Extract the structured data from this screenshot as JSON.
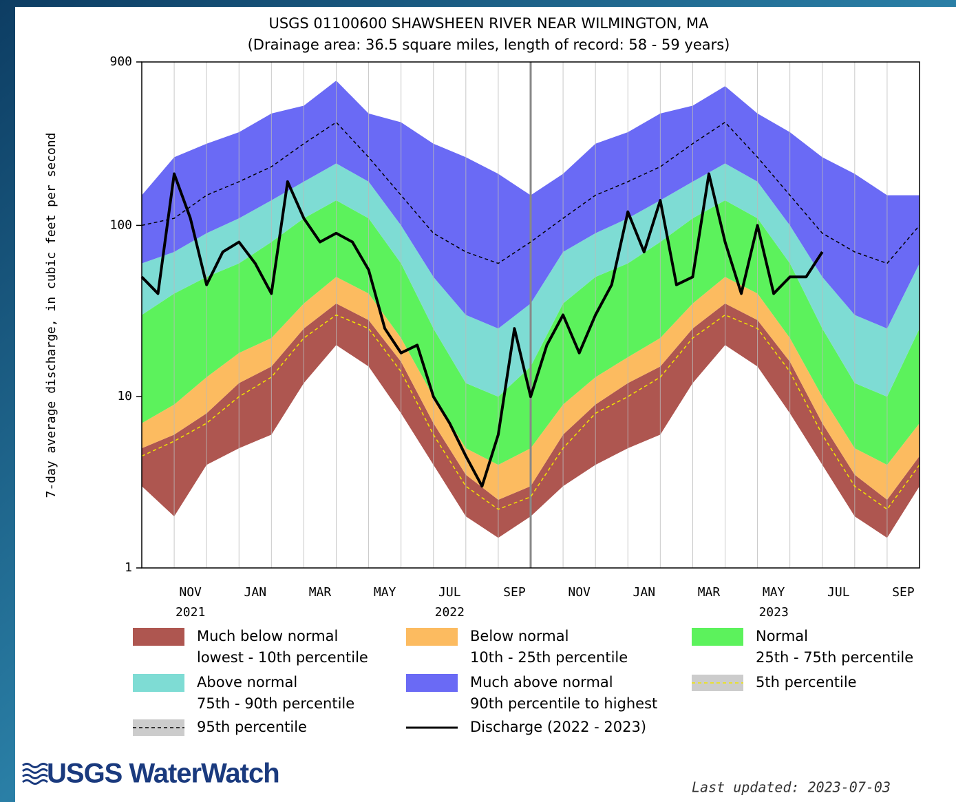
{
  "chart_data": {
    "type": "area",
    "title": "USGS 01100600 SHAWSHEEN RIVER NEAR WILMINGTON, MA",
    "subtitle": "(Drainage area: 36.5 square miles, length of record: 58 - 59 years)",
    "y_label": "7-day average discharge, in cubic feet per second",
    "log_y": true,
    "ylim": [
      1,
      900
    ],
    "yticks": [
      1,
      10,
      100,
      900
    ],
    "xlim": [
      0,
      24
    ],
    "xticks": [
      {
        "value": 1.5,
        "label": "NOV"
      },
      {
        "value": 3.5,
        "label": "JAN"
      },
      {
        "value": 5.5,
        "label": "MAR"
      },
      {
        "value": 7.5,
        "label": "MAY"
      },
      {
        "value": 9.5,
        "label": "JUL"
      },
      {
        "value": 11.5,
        "label": "SEP"
      },
      {
        "value": 13.5,
        "label": "NOV"
      },
      {
        "value": 15.5,
        "label": "JAN"
      },
      {
        "value": 17.5,
        "label": "MAR"
      },
      {
        "value": 19.5,
        "label": "MAY"
      },
      {
        "value": 21.5,
        "label": "JUL"
      },
      {
        "value": 23.5,
        "label": "SEP"
      }
    ],
    "x_year_labels": [
      {
        "value": 1.5,
        "label": "2021"
      },
      {
        "value": 9.5,
        "label": "2022"
      },
      {
        "value": 19.5,
        "label": "2023"
      }
    ],
    "xgrid": [
      1,
      2,
      3,
      4,
      5,
      6,
      7,
      8,
      9,
      10,
      11,
      13,
      14,
      15,
      16,
      17,
      18,
      19,
      20,
      21,
      22,
      23
    ],
    "divider_x": 12,
    "x": [
      0,
      1,
      2,
      3,
      4,
      5,
      6,
      7,
      8,
      9,
      10,
      11,
      12,
      13,
      14,
      15,
      16,
      17,
      18,
      19,
      20,
      21,
      22,
      23,
      24
    ],
    "bands": [
      {
        "name": "Much below normal",
        "range": "lowest - 10th percentile",
        "color": "#ae5650",
        "lower": [
          3,
          2,
          4,
          5,
          6,
          12,
          20,
          15,
          8,
          4,
          2,
          1.5,
          2,
          3,
          4,
          5,
          6,
          12,
          20,
          15,
          8,
          4,
          2,
          1.5,
          3
        ],
        "upper": [
          5,
          6,
          8,
          12,
          15,
          25,
          35,
          28,
          16,
          7,
          3.5,
          2.5,
          3,
          6,
          9,
          12,
          15,
          25,
          35,
          28,
          16,
          7,
          3.5,
          2.5,
          4.5
        ]
      },
      {
        "name": "Below normal",
        "range": "10th - 25th percentile",
        "color": "#fcbb60",
        "lower": [
          5,
          6,
          8,
          12,
          15,
          25,
          35,
          28,
          16,
          7,
          3.5,
          2.5,
          3,
          6,
          9,
          12,
          15,
          25,
          35,
          28,
          16,
          7,
          3.5,
          2.5,
          4.5
        ],
        "upper": [
          7,
          9,
          13,
          18,
          22,
          35,
          50,
          40,
          22,
          10,
          5,
          4,
          5,
          9,
          13,
          17,
          22,
          35,
          50,
          40,
          22,
          10,
          5,
          4,
          7
        ]
      },
      {
        "name": "Normal",
        "range": "25th - 75th percentile",
        "color": "#5cf25c",
        "lower": [
          7,
          9,
          13,
          18,
          22,
          35,
          50,
          40,
          22,
          10,
          5,
          4,
          5,
          9,
          13,
          17,
          22,
          35,
          50,
          40,
          22,
          10,
          5,
          4,
          7
        ],
        "upper": [
          30,
          40,
          50,
          60,
          80,
          110,
          140,
          110,
          60,
          25,
          12,
          10,
          15,
          35,
          50,
          60,
          80,
          110,
          140,
          110,
          60,
          25,
          12,
          10,
          25
        ]
      },
      {
        "name": "Above normal",
        "range": "75th - 90th percentile",
        "color": "#7edcd4",
        "lower": [
          30,
          40,
          50,
          60,
          80,
          110,
          140,
          110,
          60,
          25,
          12,
          10,
          15,
          35,
          50,
          60,
          80,
          110,
          140,
          110,
          60,
          25,
          12,
          10,
          25
        ],
        "upper": [
          60,
          70,
          90,
          110,
          140,
          180,
          230,
          180,
          100,
          50,
          30,
          25,
          35,
          70,
          90,
          110,
          140,
          180,
          230,
          180,
          100,
          50,
          30,
          25,
          60
        ]
      },
      {
        "name": "Much above normal",
        "range": "90th percentile to highest",
        "color": "#6a6af5",
        "lower": [
          60,
          70,
          90,
          110,
          140,
          180,
          230,
          180,
          100,
          50,
          30,
          25,
          35,
          70,
          90,
          110,
          140,
          180,
          230,
          180,
          100,
          50,
          30,
          25,
          60
        ],
        "upper": [
          150,
          250,
          300,
          350,
          450,
          500,
          700,
          450,
          400,
          300,
          250,
          200,
          150,
          200,
          300,
          350,
          450,
          500,
          650,
          450,
          350,
          250,
          200,
          150,
          150
        ]
      }
    ],
    "lines": [
      {
        "name": "5th percentile",
        "color": "#f2e600",
        "dash": true,
        "values": [
          4.5,
          5.5,
          7,
          10,
          13,
          22,
          30,
          25,
          14,
          6,
          3,
          2.2,
          2.6,
          5,
          8,
          10,
          13,
          22,
          30,
          25,
          14,
          6,
          3,
          2.2,
          4
        ]
      },
      {
        "name": "95th percentile",
        "color": "#000000",
        "dash": true,
        "values": [
          100,
          110,
          150,
          180,
          220,
          300,
          400,
          250,
          150,
          90,
          70,
          60,
          80,
          110,
          150,
          180,
          220,
          300,
          400,
          250,
          150,
          90,
          70,
          60,
          100
        ]
      },
      {
        "name": "Discharge (2022 - 2023)",
        "color": "#000000",
        "dash": false,
        "x": [
          0,
          0.5,
          1,
          1.5,
          2,
          2.5,
          3,
          3.5,
          4,
          4.5,
          5,
          5.5,
          6,
          6.5,
          7,
          7.5,
          8,
          8.5,
          9,
          9.5,
          10,
          10.5,
          11,
          11.5,
          12,
          12.5,
          13,
          13.5,
          14,
          14.5,
          15,
          15.5,
          16,
          16.5,
          17,
          17.5,
          18,
          18.5,
          19,
          19.5,
          20,
          20.5,
          21
        ],
        "values": [
          50,
          40,
          200,
          110,
          45,
          70,
          80,
          60,
          40,
          180,
          110,
          80,
          90,
          80,
          55,
          25,
          18,
          20,
          10,
          7,
          4.5,
          3,
          6,
          25,
          10,
          20,
          30,
          18,
          30,
          45,
          120,
          70,
          140,
          45,
          50,
          200,
          80,
          40,
          100,
          40,
          50,
          50,
          70
        ]
      }
    ],
    "logo": "USGS WaterWatch",
    "updated": "Last updated: 2023-07-03"
  }
}
